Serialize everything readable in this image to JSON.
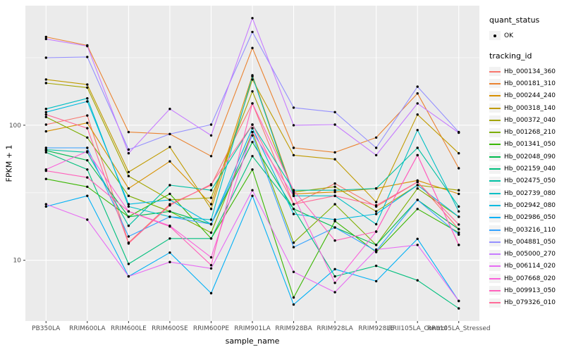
{
  "axes": {
    "x_title": "sample_name",
    "y_title": "FPKM + 1"
  },
  "legend": {
    "quant_status_title": "quant_status",
    "quant_status_items": [
      {
        "label": "OK",
        "symbol": "black-point"
      }
    ],
    "tracking_id_title": "tracking_id"
  },
  "colors": {
    "panel_bg": "#EBEBEB",
    "grid": "#FFFFFF",
    "tick_text": "#4D4D4D",
    "tick_mark": "#333333",
    "legend_key_bg": "#F2F2F2",
    "figure_bg": "#FFFFFF",
    "point": "#000000"
  },
  "chart_data": {
    "type": "line",
    "title": "",
    "xlabel": "sample_name",
    "ylabel": "FPKM + 1",
    "legend_position": "right",
    "grid": true,
    "marker": {
      "shape": "point",
      "color": "#000000",
      "meaning": "quant_status OK"
    },
    "x_axis": {
      "categories": [
        "PB350LA",
        "RRIM600LA",
        "RRIM600LE",
        "RRIM600SE",
        "RRIM600PE",
        "RRIM901LA",
        "RRIM928BA",
        "RRIM928LA",
        "RRIM928LE",
        "RRII105LA_Control",
        "RRII105LA_Stressed"
      ]
    },
    "y_axis": {
      "scale": "log10",
      "ticks": [
        10,
        100
      ],
      "minor_ticks": [
        31.6,
        316.2
      ],
      "range": [
        3.55,
        768
      ]
    },
    "series": [
      {
        "name": "Hb_000134_360",
        "color": "#F8766D",
        "values": [
          101,
          118,
          13.5,
          26,
          36,
          145,
          26,
          37,
          25,
          38,
          17
        ]
      },
      {
        "name": "Hb_000181_310",
        "color": "#EA8331",
        "values": [
          450,
          390,
          89,
          86,
          59,
          373,
          68,
          63,
          81,
          172,
          48
        ]
      },
      {
        "name": "Hb_000244_240",
        "color": "#D89000",
        "values": [
          90,
          104,
          34,
          54,
          26,
          234,
          31,
          32,
          34,
          39,
          31
        ]
      },
      {
        "name": "Hb_000318_140",
        "color": "#C09B00",
        "values": [
          218,
          200,
          45,
          69,
          24,
          218,
          60,
          56,
          27,
          120,
          62
        ]
      },
      {
        "name": "Hb_000372_040",
        "color": "#A3A500",
        "values": [
          205,
          190,
          42,
          28,
          29,
          178,
          32,
          35,
          23,
          36,
          33
        ]
      },
      {
        "name": "Hb_001268_210",
        "color": "#7CAE00",
        "values": [
          115,
          81,
          30,
          23,
          16,
          89,
          13.5,
          26,
          13,
          34,
          21
        ]
      },
      {
        "name": "Hb_001341_050",
        "color": "#39B600",
        "values": [
          40,
          35,
          21,
          31,
          14.5,
          47,
          5.3,
          19.5,
          11.5,
          24,
          16
        ]
      },
      {
        "name": "Hb_002048_090",
        "color": "#00BB4E",
        "values": [
          65,
          55,
          21,
          23,
          18.5,
          75,
          24,
          17.5,
          13,
          28,
          17
        ]
      },
      {
        "name": "Hb_002159_040",
        "color": "#00BF7D",
        "values": [
          63,
          47,
          9.4,
          14.5,
          14.5,
          59,
          24,
          7.6,
          9.1,
          7.1,
          4.4
        ]
      },
      {
        "name": "Hb_002475_050",
        "color": "#00C1A3",
        "values": [
          66,
          63,
          18,
          36,
          33,
          101,
          33,
          33,
          34,
          68,
          25
        ]
      },
      {
        "name": "Hb_002739_080",
        "color": "#00BFC4",
        "values": [
          132,
          158,
          25,
          21,
          20,
          230,
          30,
          30,
          18.5,
          92,
          23
        ]
      },
      {
        "name": "Hb_002942_080",
        "color": "#00BAE0",
        "values": [
          125,
          150,
          26,
          28,
          18.5,
          95,
          22,
          20,
          22,
          36,
          21
        ]
      },
      {
        "name": "Hb_002986_050",
        "color": "#00B0F6",
        "values": [
          25,
          30,
          7.6,
          11.4,
          5.7,
          30,
          4.7,
          8.6,
          7,
          14.4,
          5
        ]
      },
      {
        "name": "Hb_003216_110",
        "color": "#35A2FF",
        "values": [
          68,
          68,
          15,
          21,
          18.5,
          84,
          12.5,
          17.5,
          11.7,
          28,
          15.5
        ]
      },
      {
        "name": "Hb_004881_050",
        "color": "#9590FF",
        "values": [
          316,
          320,
          66,
          86,
          101,
          490,
          135,
          125,
          68,
          193,
          89
        ]
      },
      {
        "name": "Hb_005000_270",
        "color": "#C77CFF",
        "values": [
          435,
          385,
          62,
          132,
          84,
          620,
          100,
          101,
          60,
          145,
          88
        ]
      },
      {
        "name": "Hb_006114_020",
        "color": "#E76BF3",
        "values": [
          26,
          20,
          7.6,
          9.7,
          8.7,
          33,
          8.2,
          5.8,
          12,
          13,
          5
        ]
      },
      {
        "name": "Hb_007668_020",
        "color": "#FA62DB",
        "values": [
          47,
          64,
          23,
          18,
          10.5,
          89,
          30,
          6.8,
          16.3,
          60,
          13
        ]
      },
      {
        "name": "Hb_009913_050",
        "color": "#FF62BC",
        "values": [
          46,
          41,
          23,
          17.8,
          9.2,
          145,
          33,
          14,
          16.3,
          60,
          13
        ]
      },
      {
        "name": "Hb_079326_010",
        "color": "#FF6A98",
        "values": [
          120,
          95,
          13.3,
          25.5,
          36.5,
          101,
          26,
          30,
          25.5,
          38,
          18.4
        ]
      }
    ]
  }
}
